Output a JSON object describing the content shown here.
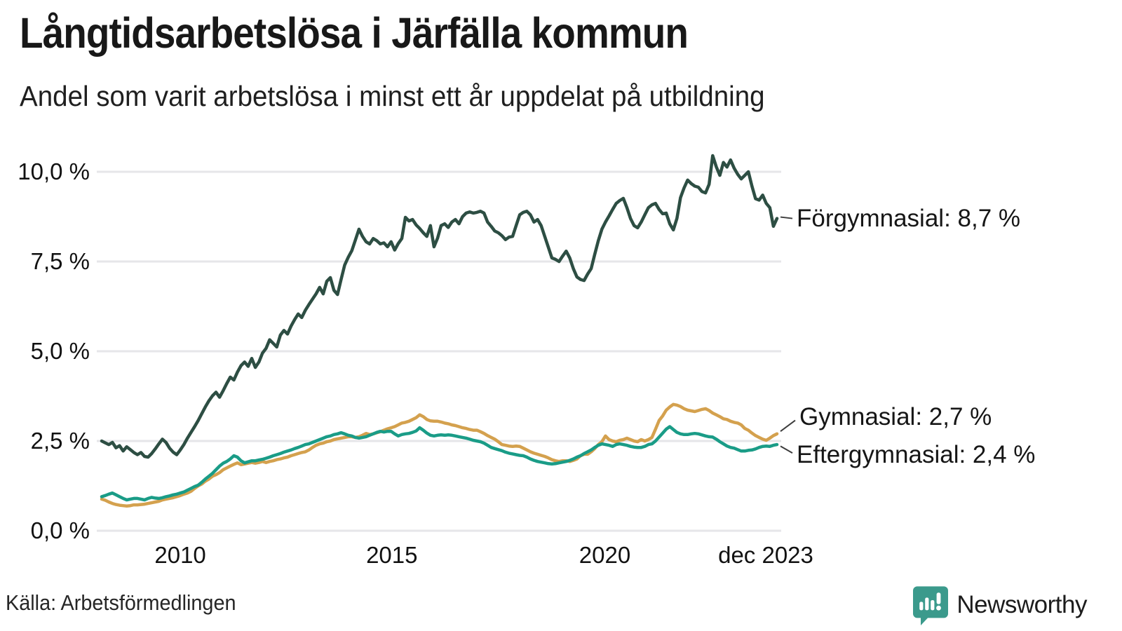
{
  "header": {
    "title": "Långtidsarbetslösa i Järfälla kommun",
    "subtitle": "Andel som varit arbetslösa i minst ett år uppdelat på utbildning"
  },
  "footer": {
    "source": "Källa: Arbetsförmedlingen",
    "brand": "Newsworthy"
  },
  "colors": {
    "forgymnasial": "#2D4E43",
    "gymnasial": "#D4A14E",
    "eftergymnasial": "#1A9C87",
    "gridline": "#e6e6e9",
    "text": "#1c1c1c",
    "brand_teal": "#3B9A8C",
    "connector": "#3d3d3d",
    "background": "#ffffff"
  },
  "chart_data": {
    "type": "line",
    "title": "Långtidsarbetslösa i Järfälla kommun",
    "subtitle": "Andel som varit arbetslösa i minst ett år uppdelat på utbildning",
    "x_unit": "month",
    "x_range": [
      "2008-03",
      "2023-12"
    ],
    "n_points": 190,
    "grid": "horizontal",
    "legend_position": "end-of-line-labels",
    "ylim": [
      0,
      10.8
    ],
    "y_ticks": [
      "10,0 %",
      "7,5 %",
      "5,0 %",
      "2,5 %",
      "0,0 %"
    ],
    "y_tick_values": [
      10,
      7.5,
      5,
      2.5,
      0
    ],
    "x_ticks": [
      {
        "label": "2010",
        "month_index": 22,
        "nudge": 0
      },
      {
        "label": "2015",
        "month_index": 82,
        "nudge": -4
      },
      {
        "label": "2020",
        "month_index": 142,
        "nudge": -6
      },
      {
        "label": "dec 2023",
        "month_index": 189,
        "nudge": -16
      }
    ],
    "series": [
      {
        "name": "Förgymnasial",
        "end_label": "Förgymnasial: 8,7 %",
        "end_value": 8.7,
        "color": "#2D4E43",
        "values": [
          2.5,
          2.45,
          2.4,
          2.46,
          2.31,
          2.37,
          2.22,
          2.34,
          2.26,
          2.18,
          2.12,
          2.18,
          2.07,
          2.05,
          2.15,
          2.28,
          2.42,
          2.55,
          2.46,
          2.3,
          2.19,
          2.12,
          2.25,
          2.4,
          2.58,
          2.74,
          2.9,
          3.07,
          3.26,
          3.45,
          3.62,
          3.76,
          3.86,
          3.72,
          3.9,
          4.1,
          4.28,
          4.2,
          4.42,
          4.6,
          4.7,
          4.58,
          4.8,
          4.55,
          4.7,
          4.95,
          5.08,
          5.32,
          5.22,
          5.12,
          5.45,
          5.58,
          5.48,
          5.7,
          5.88,
          6.04,
          5.94,
          6.14,
          6.3,
          6.45,
          6.6,
          6.78,
          6.6,
          6.95,
          7.05,
          6.7,
          6.58,
          7.0,
          7.4,
          7.62,
          7.8,
          8.1,
          8.4,
          8.2,
          8.05,
          7.99,
          8.14,
          8.08,
          7.99,
          8.02,
          7.91,
          8.05,
          7.82,
          8.0,
          8.14,
          8.73,
          8.63,
          8.67,
          8.52,
          8.42,
          8.3,
          8.2,
          8.5,
          7.91,
          8.15,
          8.5,
          8.55,
          8.45,
          8.6,
          8.67,
          8.55,
          8.75,
          8.85,
          8.88,
          8.85,
          8.87,
          8.9,
          8.85,
          8.6,
          8.48,
          8.35,
          8.3,
          8.22,
          8.11,
          8.18,
          8.2,
          8.5,
          8.8,
          8.87,
          8.9,
          8.8,
          8.6,
          8.67,
          8.5,
          8.2,
          7.9,
          7.6,
          7.56,
          7.5,
          7.65,
          7.79,
          7.6,
          7.3,
          7.07,
          7.0,
          6.97,
          7.15,
          7.3,
          7.7,
          8.08,
          8.4,
          8.6,
          8.77,
          8.95,
          9.12,
          9.2,
          9.26,
          9.0,
          8.7,
          8.5,
          8.44,
          8.6,
          8.8,
          9.0,
          9.08,
          9.12,
          8.95,
          8.83,
          8.85,
          8.55,
          8.38,
          8.7,
          9.28,
          9.55,
          9.77,
          9.67,
          9.6,
          9.57,
          9.45,
          9.41,
          9.65,
          10.45,
          10.14,
          9.9,
          10.26,
          10.13,
          10.33,
          10.1,
          9.93,
          9.8,
          9.9,
          10.0,
          9.6,
          9.25,
          9.21,
          9.35,
          9.12,
          9.0,
          8.48,
          8.7
        ]
      },
      {
        "name": "Gymnasial",
        "end_label": "Gymnasial: 2,7 %",
        "end_value": 2.7,
        "color": "#D4A14E",
        "values": [
          0.88,
          0.85,
          0.8,
          0.76,
          0.73,
          0.71,
          0.7,
          0.69,
          0.7,
          0.72,
          0.72,
          0.73,
          0.74,
          0.76,
          0.78,
          0.8,
          0.82,
          0.86,
          0.88,
          0.9,
          0.92,
          0.95,
          0.98,
          1.02,
          1.05,
          1.1,
          1.18,
          1.25,
          1.3,
          1.38,
          1.44,
          1.52,
          1.56,
          1.62,
          1.7,
          1.75,
          1.8,
          1.85,
          1.89,
          1.84,
          1.86,
          1.88,
          1.9,
          1.88,
          1.9,
          1.93,
          1.9,
          1.93,
          1.95,
          1.98,
          2.0,
          2.03,
          2.05,
          2.09,
          2.12,
          2.15,
          2.18,
          2.2,
          2.25,
          2.32,
          2.38,
          2.42,
          2.44,
          2.48,
          2.5,
          2.54,
          2.56,
          2.58,
          2.6,
          2.62,
          2.62,
          2.6,
          2.62,
          2.66,
          2.71,
          2.68,
          2.7,
          2.73,
          2.76,
          2.8,
          2.84,
          2.87,
          2.9,
          2.95,
          3.0,
          3.02,
          3.05,
          3.1,
          3.15,
          3.23,
          3.18,
          3.1,
          3.06,
          3.05,
          3.05,
          3.03,
          3.0,
          2.98,
          2.95,
          2.93,
          2.9,
          2.87,
          2.85,
          2.82,
          2.8,
          2.8,
          2.76,
          2.71,
          2.65,
          2.6,
          2.55,
          2.48,
          2.4,
          2.38,
          2.36,
          2.35,
          2.36,
          2.35,
          2.3,
          2.25,
          2.2,
          2.16,
          2.13,
          2.1,
          2.07,
          2.03,
          1.98,
          1.95,
          1.93,
          1.95,
          1.95,
          1.93,
          1.96,
          2.0,
          2.09,
          2.13,
          2.13,
          2.2,
          2.29,
          2.4,
          2.48,
          2.64,
          2.54,
          2.5,
          2.48,
          2.52,
          2.54,
          2.58,
          2.54,
          2.5,
          2.48,
          2.54,
          2.5,
          2.54,
          2.6,
          2.83,
          3.07,
          3.2,
          3.36,
          3.45,
          3.52,
          3.5,
          3.46,
          3.4,
          3.36,
          3.34,
          3.32,
          3.35,
          3.38,
          3.4,
          3.35,
          3.28,
          3.23,
          3.18,
          3.12,
          3.1,
          3.05,
          3.02,
          3.0,
          2.95,
          2.85,
          2.8,
          2.72,
          2.65,
          2.6,
          2.55,
          2.52,
          2.58,
          2.65,
          2.7
        ]
      },
      {
        "name": "Eftergymnasial",
        "end_label": "Eftergymnasial: 2,4 %",
        "end_value": 2.4,
        "color": "#1A9C87",
        "values": [
          0.95,
          0.98,
          1.02,
          1.05,
          1.0,
          0.95,
          0.9,
          0.86,
          0.88,
          0.9,
          0.9,
          0.88,
          0.86,
          0.9,
          0.93,
          0.91,
          0.9,
          0.92,
          0.95,
          0.97,
          1.0,
          1.02,
          1.05,
          1.08,
          1.13,
          1.18,
          1.23,
          1.27,
          1.35,
          1.44,
          1.52,
          1.6,
          1.7,
          1.8,
          1.88,
          1.93,
          2.0,
          2.09,
          2.05,
          1.95,
          1.89,
          1.92,
          1.95,
          1.95,
          1.97,
          1.99,
          2.02,
          2.05,
          2.09,
          2.12,
          2.15,
          2.19,
          2.22,
          2.25,
          2.29,
          2.32,
          2.36,
          2.4,
          2.42,
          2.46,
          2.5,
          2.54,
          2.58,
          2.62,
          2.64,
          2.68,
          2.7,
          2.73,
          2.7,
          2.66,
          2.64,
          2.6,
          2.58,
          2.6,
          2.62,
          2.66,
          2.7,
          2.74,
          2.77,
          2.75,
          2.77,
          2.77,
          2.7,
          2.64,
          2.68,
          2.7,
          2.71,
          2.74,
          2.78,
          2.87,
          2.8,
          2.72,
          2.66,
          2.64,
          2.66,
          2.67,
          2.66,
          2.67,
          2.66,
          2.64,
          2.62,
          2.6,
          2.58,
          2.55,
          2.52,
          2.5,
          2.48,
          2.44,
          2.38,
          2.32,
          2.29,
          2.26,
          2.23,
          2.19,
          2.16,
          2.14,
          2.12,
          2.1,
          2.09,
          2.05,
          2.0,
          1.96,
          1.93,
          1.91,
          1.89,
          1.87,
          1.86,
          1.87,
          1.89,
          1.91,
          1.93,
          1.96,
          2.0,
          2.05,
          2.09,
          2.15,
          2.2,
          2.25,
          2.32,
          2.38,
          2.42,
          2.4,
          2.38,
          2.35,
          2.4,
          2.42,
          2.4,
          2.38,
          2.35,
          2.33,
          2.32,
          2.32,
          2.35,
          2.4,
          2.42,
          2.5,
          2.61,
          2.72,
          2.83,
          2.9,
          2.82,
          2.74,
          2.7,
          2.68,
          2.68,
          2.7,
          2.71,
          2.7,
          2.67,
          2.64,
          2.62,
          2.61,
          2.55,
          2.48,
          2.42,
          2.36,
          2.32,
          2.3,
          2.26,
          2.22,
          2.22,
          2.24,
          2.25,
          2.28,
          2.32,
          2.35,
          2.36,
          2.35,
          2.38,
          2.4
        ]
      }
    ]
  }
}
